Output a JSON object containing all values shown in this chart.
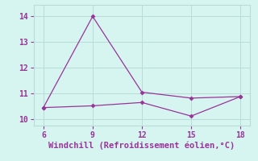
{
  "line1_x": [
    6,
    9,
    12,
    15,
    18
  ],
  "line1_y": [
    10.45,
    14.0,
    11.05,
    10.82,
    10.88
  ],
  "line2_x": [
    6,
    9,
    12,
    15,
    18
  ],
  "line2_y": [
    10.45,
    10.52,
    10.65,
    10.12,
    10.88
  ],
  "line_color": "#993399",
  "markersize": 2.5,
  "xlabel": "Windchill (Refroidissement éolien,°C)",
  "xlim": [
    5.4,
    18.6
  ],
  "ylim": [
    9.75,
    14.45
  ],
  "xticks": [
    6,
    9,
    12,
    15,
    18
  ],
  "yticks": [
    10,
    11,
    12,
    13,
    14
  ],
  "background_color": "#d6f5f0",
  "grid_color": "#b8ddd8",
  "font_color": "#993399",
  "xlabel_fontsize": 7.5,
  "tick_fontsize": 7.0,
  "linewidth": 0.9
}
